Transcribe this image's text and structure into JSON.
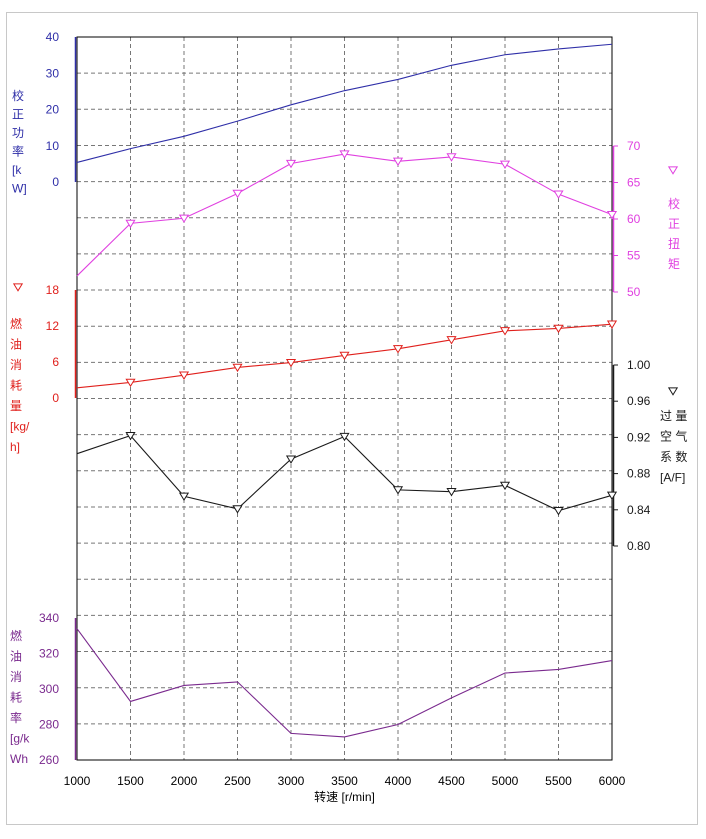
{
  "chart_data": {
    "type": "line",
    "x_axis": {
      "label": "转速 [r/min]",
      "ticks": [
        1000,
        1500,
        2000,
        2500,
        3000,
        3500,
        4000,
        4500,
        5000,
        5500,
        6000
      ],
      "range": [
        1000,
        6000
      ]
    },
    "grid": true,
    "x": [
      1000,
      1500,
      2000,
      2500,
      3000,
      3500,
      4000,
      4500,
      5000,
      5500,
      6000
    ],
    "series": [
      {
        "id": "power",
        "name": "校正功率",
        "unit": "[kW]",
        "axis_title_lines": [
          "校",
          "正",
          "功",
          "率",
          "[k",
          "W]"
        ],
        "side": "left",
        "color": "#2f2fa8",
        "marker": "none",
        "ticks": [
          0,
          10,
          20,
          30,
          40
        ],
        "range": [
          0,
          40
        ],
        "values": [
          5.4,
          9.2,
          12.6,
          16.8,
          21.3,
          25.2,
          28.3,
          32.2,
          35.1,
          36.7,
          38.0
        ]
      },
      {
        "id": "torque",
        "name": "校正扭矩",
        "unit": "",
        "axis_title_lines": [
          "校",
          "正",
          "扭",
          "矩"
        ],
        "side": "right",
        "color": "#e040e0",
        "marker": "triangle-down",
        "ticks": [
          50,
          55,
          60,
          65,
          70
        ],
        "range": [
          50,
          70
        ],
        "values": [
          52.2,
          59.4,
          60.1,
          63.5,
          67.6,
          68.9,
          67.9,
          68.5,
          67.5,
          63.4,
          60.6
        ]
      },
      {
        "id": "fuel",
        "name": "燃油消耗量",
        "unit": "[kg/h]",
        "axis_title_lines": [
          "燃",
          "油",
          "消",
          "耗",
          "量",
          "[kg/",
          "h]"
        ],
        "side": "left",
        "color": "#e0201c",
        "marker": "triangle-down",
        "ticks": [
          0,
          6,
          12,
          18
        ],
        "range": [
          0,
          18
        ],
        "values": [
          1.7,
          2.6,
          3.8,
          5.1,
          5.9,
          7.1,
          8.2,
          9.7,
          11.2,
          11.6,
          12.3
        ]
      },
      {
        "id": "lambda",
        "name": "过量空气系数",
        "unit": "[A/F]",
        "axis_title_lines": [
          "过 量",
          "空 气",
          "系 数",
          "[A/F]"
        ],
        "side": "right",
        "color": "#1a1a1a",
        "marker": "triangle-down",
        "ticks": [
          0.8,
          0.84,
          0.88,
          0.92,
          0.96,
          1.0
        ],
        "tick_labels": [
          "0.80",
          "0.84",
          "0.88",
          "0.92",
          "0.96",
          "1.00"
        ],
        "range": [
          0.8,
          1.0
        ],
        "values": [
          0.902,
          0.922,
          0.855,
          0.841,
          0.896,
          0.921,
          0.862,
          0.86,
          0.867,
          0.839,
          0.856
        ]
      },
      {
        "id": "bsfc",
        "name": "燃油消耗率",
        "unit": "[g/kWh]",
        "axis_title_lines": [
          "燃",
          "油",
          "消",
          "耗",
          "率",
          "[g/k",
          "Wh"
        ],
        "side": "left",
        "color": "#7a2a8e",
        "marker": "none",
        "ticks": [
          260,
          280,
          300,
          320,
          340
        ],
        "range": [
          260,
          340
        ],
        "values": [
          334,
          293,
          302,
          304,
          275,
          273,
          280,
          295,
          309,
          311,
          316
        ]
      }
    ]
  }
}
